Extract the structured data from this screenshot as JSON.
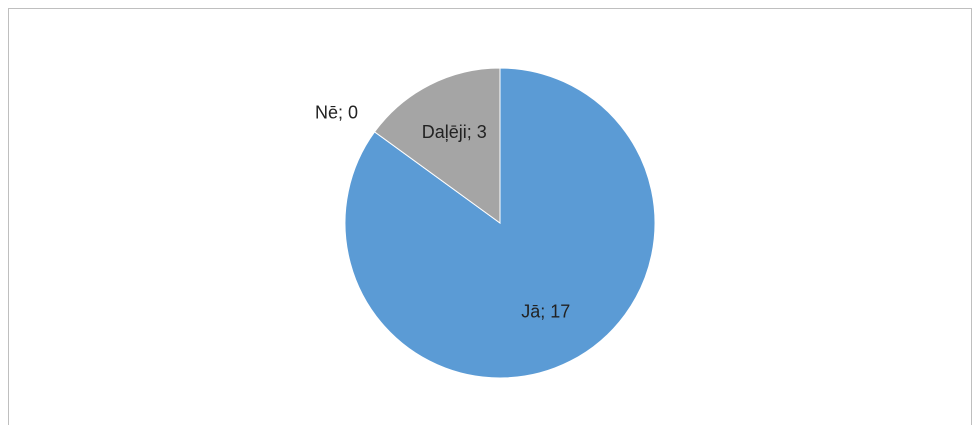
{
  "chart_data": {
    "type": "pie",
    "values": [
      17,
      0,
      3
    ],
    "value_labels": [
      "Jā; 17",
      "Nē; 0",
      "Daļēji; 3"
    ],
    "colors": [
      "#5b9bd5",
      "#ed7d31",
      "#a5a5a5"
    ]
  }
}
